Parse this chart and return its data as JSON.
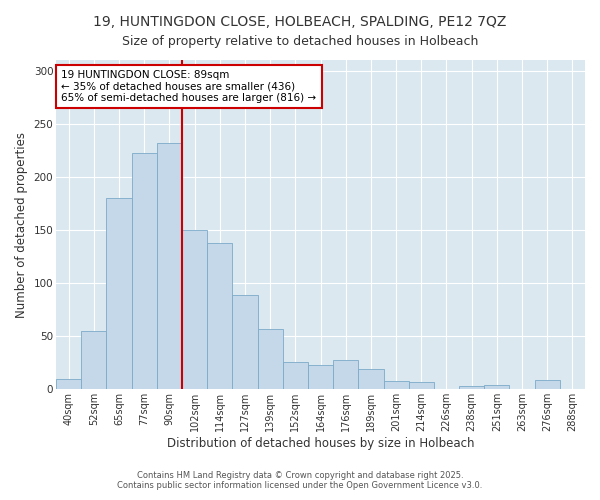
{
  "title": "19, HUNTINGDON CLOSE, HOLBEACH, SPALDING, PE12 7QZ",
  "subtitle": "Size of property relative to detached houses in Holbeach",
  "xlabel": "Distribution of detached houses by size in Holbeach",
  "ylabel": "Number of detached properties",
  "bar_labels": [
    "40sqm",
    "52sqm",
    "65sqm",
    "77sqm",
    "90sqm",
    "102sqm",
    "114sqm",
    "127sqm",
    "139sqm",
    "152sqm",
    "164sqm",
    "176sqm",
    "189sqm",
    "201sqm",
    "214sqm",
    "226sqm",
    "238sqm",
    "251sqm",
    "263sqm",
    "276sqm",
    "288sqm"
  ],
  "bar_values": [
    10,
    55,
    180,
    222,
    232,
    150,
    138,
    89,
    57,
    26,
    23,
    28,
    19,
    8,
    7,
    0,
    3,
    4,
    0,
    9,
    0
  ],
  "bar_color": "#c5d8ea",
  "bar_edge_color": "#7aaac8",
  "vline_x": 4,
  "vline_color": "#cc0000",
  "annotation_text": "19 HUNTINGDON CLOSE: 89sqm\n← 35% of detached houses are smaller (436)\n65% of semi-detached houses are larger (816) →",
  "ylim": [
    0,
    310
  ],
  "yticks": [
    0,
    50,
    100,
    150,
    200,
    250,
    300
  ],
  "footer1": "Contains HM Land Registry data © Crown copyright and database right 2025.",
  "footer2": "Contains public sector information licensed under the Open Government Licence v3.0.",
  "fig_bg_color": "#ffffff",
  "plot_bg_color": "#dce8f0",
  "title_fontsize": 10,
  "subtitle_fontsize": 9,
  "title_color": "#333333"
}
